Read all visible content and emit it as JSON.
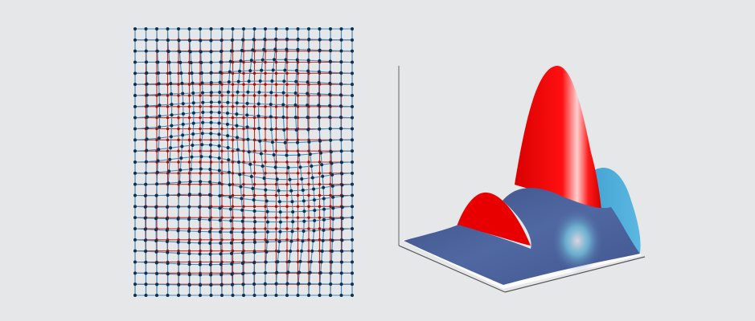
{
  "figure": {
    "background": "#e6e7e9",
    "grid_panel": {
      "columns": 21,
      "rows": 25,
      "reference_grid_color": "#c8281e",
      "deformed_grid_color": "#3a8fc4",
      "node_color": "#0f2f4a"
    },
    "surface_panel": {
      "peak_color": "#e60000",
      "surface_color": "#4f66a0",
      "side_color": "#4fb0dc",
      "axis_color": "#555555"
    }
  }
}
